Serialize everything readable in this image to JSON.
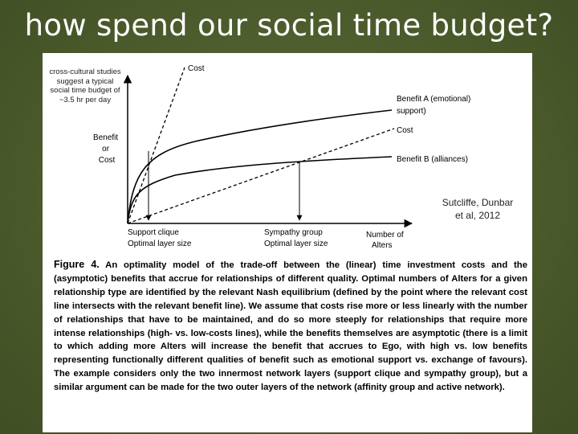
{
  "slide": {
    "title": "how spend our social time budget?",
    "note": "cross-cultural studies suggest a typical social time budget of ~3.5 hr per day",
    "citation": "Sutcliffe, Dunbar et al, 2012"
  },
  "diagram": {
    "y_axis_label": [
      "Benefit",
      "or",
      "Cost"
    ],
    "curve_labels": {
      "cost_steep": "Cost",
      "benefit_a": [
        "Benefit A (emotional)",
        "support)"
      ],
      "cost_shallow": "Cost",
      "benefit_b": "Benefit B (alliances)"
    },
    "x_labels": {
      "support_clique": [
        "Support clique",
        "Optimal layer size"
      ],
      "sympathy_group": [
        "Sympathy group",
        "Optimal layer size"
      ],
      "x_axis": [
        "Number of",
        "Alters"
      ]
    }
  },
  "caption": {
    "label": "Figure 4.",
    "text": "An optimality model of the trade-off between the (linear) time investment costs and the (asymptotic) benefits that accrue for relationships of different quality. Optimal numbers of Alters for a given relationship type are identified by the relevant Nash equilibrium (defined by the point where the relevant cost line intersects with the relevant benefit line). We assume that costs rise more or less linearly with the number of relationships that have to be maintained, and do so more steeply for relationships that require more intense relationships (high- vs. low-costs lines), while the benefits themselves are asymptotic (there is a limit to which adding more Alters will increase the benefit that accrues to Ego, with high vs. low benefits representing functionally different qualities of benefit such as emotional support vs. exchange of favours). The example considers only the two innermost network layers (support clique and sympathy group), but a similar argument can be made for the two outer layers of the network (affinity group and active network)."
  }
}
